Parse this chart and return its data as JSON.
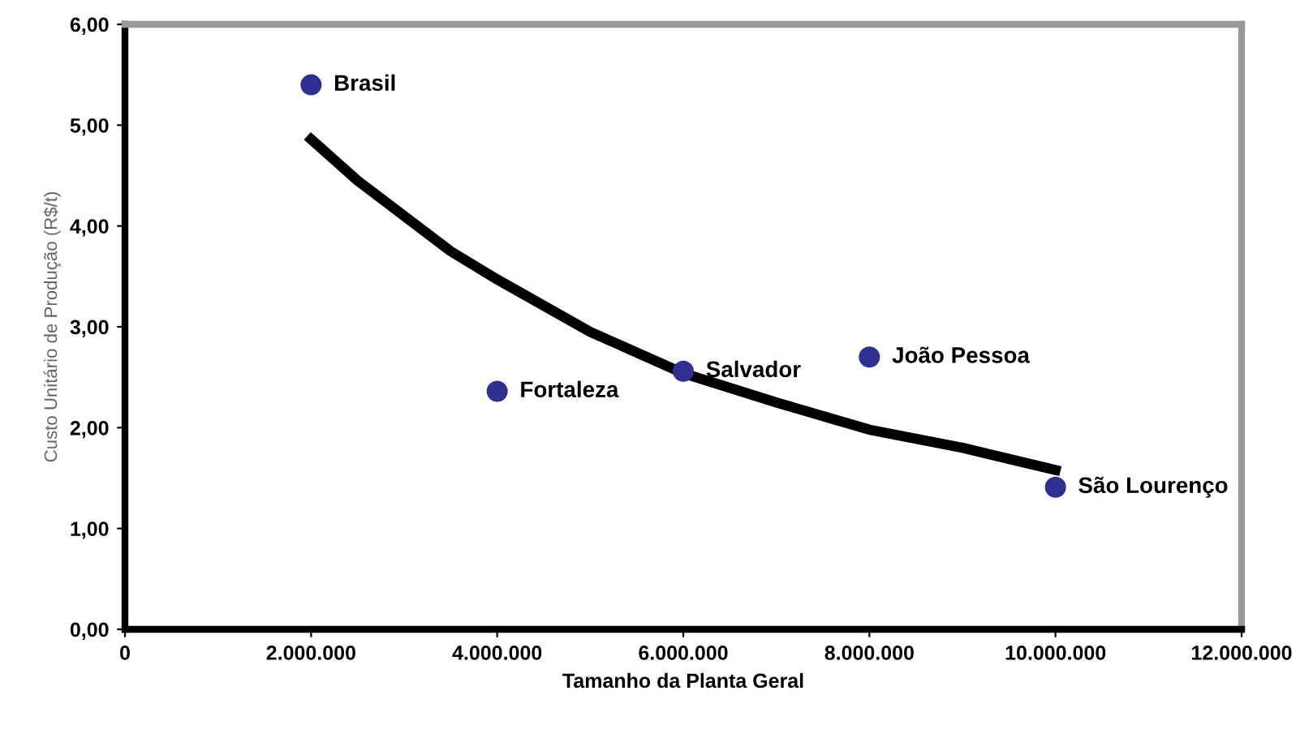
{
  "chart_data": {
    "type": "scatter",
    "xlabel": "Tamanho da Planta Geral",
    "ylabel": "Custo Unitário de Produção (R$/t)",
    "xlim": [
      0,
      12000000
    ],
    "ylim": [
      0,
      6
    ],
    "xticks": [
      {
        "value": 0,
        "label": "0"
      },
      {
        "value": 2000000,
        "label": "2.000.000"
      },
      {
        "value": 4000000,
        "label": "4.000.000"
      },
      {
        "value": 6000000,
        "label": "6.000.000"
      },
      {
        "value": 8000000,
        "label": "8.000.000"
      },
      {
        "value": 10000000,
        "label": "10.000.000"
      },
      {
        "value": 12000000,
        "label": "12.000.000"
      }
    ],
    "yticks": [
      {
        "value": 0,
        "label": "0,00"
      },
      {
        "value": 1,
        "label": "1,00"
      },
      {
        "value": 2,
        "label": "2,00"
      },
      {
        "value": 3,
        "label": "3,00"
      },
      {
        "value": 4,
        "label": "4,00"
      },
      {
        "value": 5,
        "label": "5,00"
      },
      {
        "value": 6,
        "label": "6,00"
      }
    ],
    "grid": false,
    "legend": false,
    "series": [
      {
        "marker": "circle",
        "color": "#2e3192",
        "x": [
          2000000,
          4000000,
          6000000,
          8000000,
          10000000
        ],
        "values": [
          5.4,
          2.36,
          2.56,
          2.7,
          1.41
        ]
      },
      {
        "type": "line",
        "color": "#000000",
        "marker": "none",
        "line_style": "solid",
        "x": [
          2000000,
          2500000,
          3000000,
          3500000,
          4000000,
          5000000,
          6000000,
          7000000,
          8000000,
          9000000,
          10000000
        ],
        "values": [
          4.86,
          4.45,
          4.1,
          3.75,
          3.47,
          2.95,
          2.54,
          2.25,
          1.98,
          1.8,
          1.58
        ]
      }
    ],
    "annotations": [
      {
        "text": "Brasil",
        "x": 2000000,
        "y": 5.4
      },
      {
        "text": "Fortaleza",
        "x": 4000000,
        "y": 2.36
      },
      {
        "text": "Salvador",
        "x": 6000000,
        "y": 2.56
      },
      {
        "text": "João Pessoa",
        "x": 8000000,
        "y": 2.7
      },
      {
        "text": "São Lourenço",
        "x": 10000000,
        "y": 1.41
      }
    ]
  }
}
